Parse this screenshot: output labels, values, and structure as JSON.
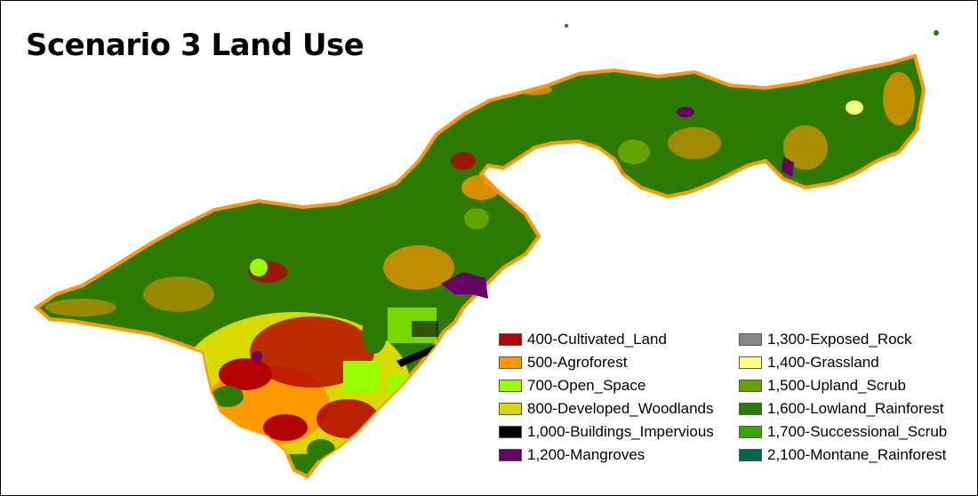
{
  "title": "Scenario 3 Land Use",
  "legend": {
    "items": [
      {
        "label": "400-Cultivated_Land",
        "color": "#b30000"
      },
      {
        "label": "500-Agroforest",
        "color": "#ff9900"
      },
      {
        "label": "700-Open_Space",
        "color": "#99ff00"
      },
      {
        "label": "800-Developed_Woodlands",
        "color": "#d9d900"
      },
      {
        "label": "1,000-Buildings_Impervious",
        "color": "#000000"
      },
      {
        "label": "1,200-Mangroves",
        "color": "#660066"
      },
      {
        "label": "1,300-Exposed_Rock",
        "color": "#888888"
      },
      {
        "label": "1,400-Grassland",
        "color": "#ffff80"
      },
      {
        "label": "1,500-Upland_Scrub",
        "color": "#66a300"
      },
      {
        "label": "1,600-Lowland_Rainforest",
        "color": "#2d7a00"
      },
      {
        "label": "1,700-Successional_Scrub",
        "color": "#3fa300"
      },
      {
        "label": "2,100-Montane_Rainforest",
        "color": "#006650"
      }
    ]
  },
  "map": {
    "base_color": "#2d7a00",
    "fringe_color": "#ff9900",
    "developed_color": "#d9d900",
    "cultivated_color": "#b30000",
    "mangrove_color": "#660066",
    "open_space_color": "#99ff00",
    "impervious_color": "#000000"
  }
}
